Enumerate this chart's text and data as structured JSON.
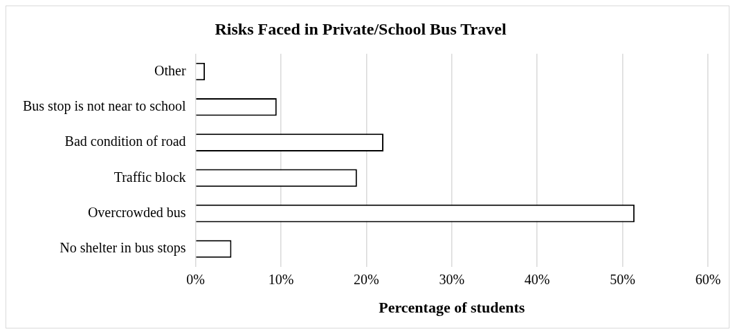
{
  "chart_data": {
    "type": "bar",
    "orientation": "horizontal",
    "title": "Risks Faced in Private/School Bus Travel",
    "xlabel": "Percentage of students",
    "categories": [
      "Other",
      "Bus stop is not near to school",
      "Bad condition of road",
      "Traffic block",
      "Overcrowded bus",
      "No shelter in bus stops"
    ],
    "values": [
      1.1,
      9.5,
      22.0,
      18.9,
      51.4,
      4.2
    ],
    "color": "#ffffff",
    "xlim": [
      0,
      60
    ],
    "xticks": [
      {
        "value": 0,
        "label": "0%"
      },
      {
        "value": 10,
        "label": "10%"
      },
      {
        "value": 20,
        "label": "20%"
      },
      {
        "value": 30,
        "label": "30%"
      },
      {
        "value": 40,
        "label": "40%"
      },
      {
        "value": 50,
        "label": "50%"
      },
      {
        "value": 60,
        "label": "60%"
      }
    ],
    "grid": "x",
    "legend": false
  }
}
